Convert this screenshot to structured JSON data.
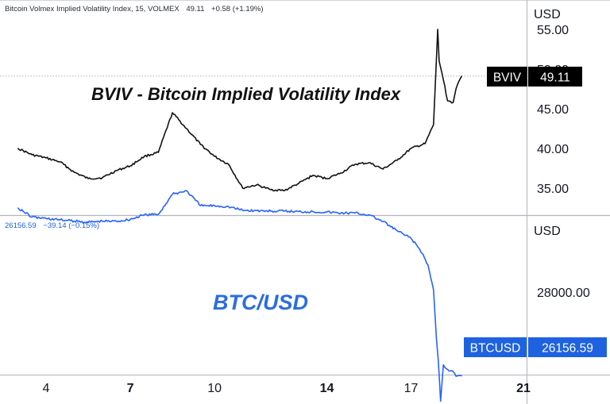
{
  "top_panel": {
    "legend": {
      "name": "Bitcoin Volmex Implied Volatility Index, 15, VOLMEX",
      "last": "49.11",
      "change": "+0.58",
      "change_pct": "(+1.19%)"
    },
    "overlay_title": "BVIV - Bitcoin Implied Volatility Index",
    "currency": "USD",
    "ticks": [
      "55.00",
      "50.00",
      "45.00",
      "40.00",
      "35.00"
    ],
    "price_tag": {
      "symbol": "BVIV",
      "value": "49.11"
    }
  },
  "bottom_panel": {
    "legend": {
      "last": "26156.59",
      "change": "−39.14",
      "change_pct": "(−0.15%)"
    },
    "overlay_title": "BTC/USD",
    "currency": "USD",
    "ticks": [
      "28000.00"
    ],
    "price_tag": {
      "symbol": "BTCUSD",
      "value": "26156.59"
    }
  },
  "time_axis": {
    "labels": [
      {
        "text": "4",
        "bold": false
      },
      {
        "text": "7",
        "bold": true
      },
      {
        "text": "10",
        "bold": false
      },
      {
        "text": "14",
        "bold": true
      },
      {
        "text": "17",
        "bold": false
      },
      {
        "text": "21",
        "bold": true
      }
    ]
  },
  "colors": {
    "bviv_line": "#111111",
    "btc_line": "#2962ff",
    "btc_text": "#1e62e0",
    "tag_bg_black": "#000000",
    "tag_bg_blue": "#1e62e0"
  },
  "chart_data": [
    {
      "type": "line",
      "title": "BVIV - Bitcoin Implied Volatility Index",
      "ylabel": "USD",
      "ylim": [
        32.5,
        57.5
      ],
      "x_ticks": [
        4,
        7,
        10,
        14,
        17,
        21
      ],
      "x": [
        3.0,
        3.5,
        4.0,
        4.5,
        5.0,
        5.5,
        6.0,
        6.5,
        7.0,
        7.5,
        8.0,
        8.5,
        9.0,
        9.5,
        10.0,
        10.5,
        11.0,
        11.5,
        12.0,
        12.5,
        13.0,
        13.5,
        14.0,
        14.5,
        15.0,
        15.5,
        16.0,
        16.5,
        17.0,
        17.5,
        17.8,
        17.95,
        18.0,
        18.1,
        18.3,
        18.5,
        18.6,
        18.8
      ],
      "values": [
        40.0,
        39.2,
        38.8,
        38.3,
        37.0,
        36.2,
        36.3,
        37.2,
        37.8,
        39.0,
        39.5,
        44.5,
        42.5,
        40.5,
        39.0,
        38.0,
        35.0,
        35.4,
        34.8,
        34.7,
        35.6,
        36.6,
        36.2,
        36.9,
        38.0,
        38.2,
        37.4,
        38.5,
        40.0,
        40.6,
        43.0,
        55.0,
        51.0,
        49.5,
        46.0,
        45.8,
        47.5,
        49.11
      ]
    },
    {
      "type": "line",
      "title": "BTC/USD",
      "ylabel": "USD",
      "ylim": [
        25200,
        31000
      ],
      "x_ticks": [
        4,
        7,
        10,
        14,
        17,
        21
      ],
      "x": [
        3.0,
        3.5,
        4.0,
        4.5,
        5.0,
        5.5,
        6.0,
        6.5,
        7.0,
        7.5,
        8.0,
        8.5,
        9.0,
        9.5,
        10.0,
        10.5,
        11.0,
        11.5,
        12.0,
        12.5,
        13.0,
        13.5,
        14.0,
        14.5,
        15.0,
        15.5,
        16.0,
        16.5,
        17.0,
        17.3,
        17.6,
        17.8,
        17.9,
        17.97,
        18.05,
        18.15,
        18.3,
        18.5,
        18.6,
        18.8
      ],
      "values": [
        29850,
        29650,
        29620,
        29590,
        29560,
        29540,
        29560,
        29560,
        29600,
        29700,
        29710,
        30150,
        30230,
        29900,
        29900,
        29880,
        29800,
        29790,
        29780,
        29780,
        29770,
        29770,
        29760,
        29740,
        29740,
        29700,
        29550,
        29350,
        29180,
        28950,
        28600,
        28050,
        27000,
        26500,
        25600,
        26400,
        26300,
        26250,
        26150,
        26156.59
      ]
    }
  ]
}
